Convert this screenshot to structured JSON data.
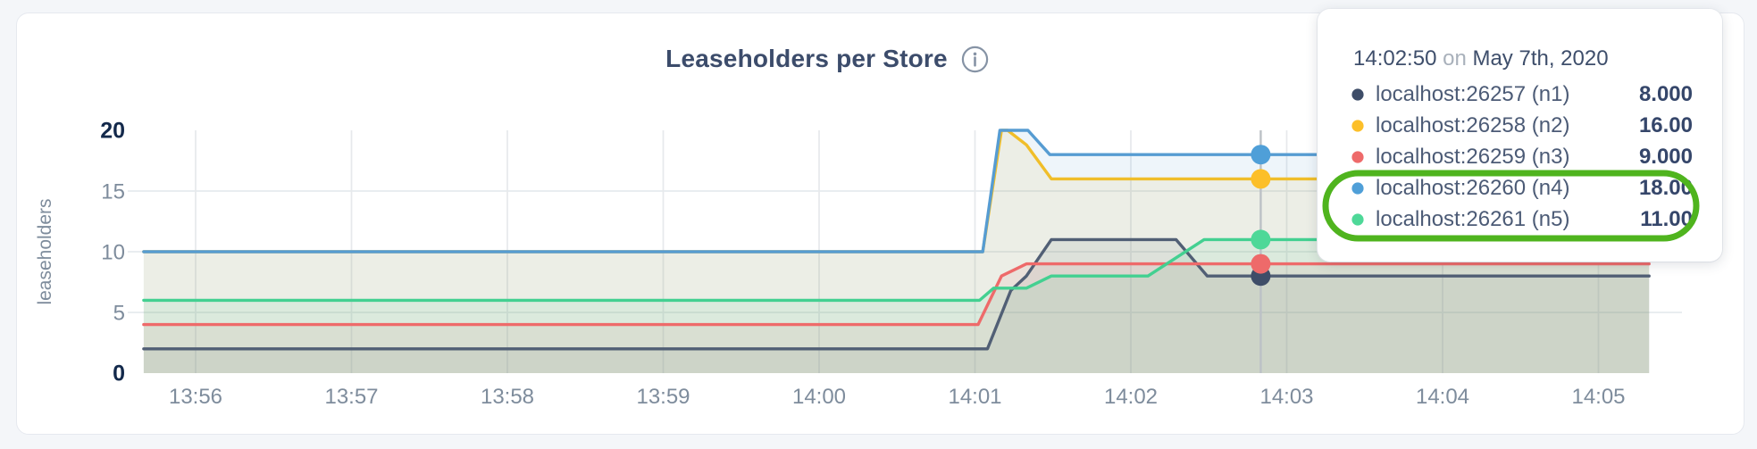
{
  "header": {
    "title": "Leaseholders per Store"
  },
  "tooltip": {
    "time": "14:02:50",
    "conjunction": "on",
    "date": "May 7th, 2020",
    "highlight_color": "#4fb41e",
    "rows": [
      {
        "label": "localhost:26257 (n1)",
        "value": "8.000",
        "dot_color": "#3e4d68",
        "highlighted": false
      },
      {
        "label": "localhost:26258 (n2)",
        "value": "16.00",
        "dot_color": "#fcbf29",
        "highlighted": false
      },
      {
        "label": "localhost:26259 (n3)",
        "value": "9.000",
        "dot_color": "#ee6a6a",
        "highlighted": false
      },
      {
        "label": "localhost:26260 (n4)",
        "value": "18.00",
        "dot_color": "#4f9fd8",
        "highlighted": true
      },
      {
        "label": "localhost:26261 (n5)",
        "value": "11.00",
        "dot_color": "#4ed898",
        "highlighted": true
      }
    ]
  },
  "chart_data": {
    "type": "area",
    "title": "Leaseholders per Store",
    "ylabel": "leaseholders",
    "ylim": [
      0,
      20
    ],
    "y_ticks": [
      0,
      5,
      10,
      15,
      20
    ],
    "y_gridlines": [
      5,
      10,
      15
    ],
    "grid": true,
    "legend_position": "tooltip-overlay",
    "x_ticks": {
      "labels": [
        "13:56",
        "13:57",
        "13:58",
        "13:59",
        "14:00",
        "14:01",
        "14:02",
        "14:03",
        "14:04",
        "14:05"
      ],
      "minutes": [
        56,
        57,
        58,
        59,
        60,
        61,
        62,
        63,
        64,
        65
      ]
    },
    "x_range_minutes": [
      55.667,
      65.325
    ],
    "hover": {
      "time_label": "14:02:50",
      "date_label": "May 7th, 2020",
      "x_minute": 62.8333
    },
    "series": [
      {
        "name": "localhost:26257 (n1)",
        "node": "n1",
        "color": "#515f75",
        "dot_color": "#3e4d68",
        "hover_value": 8,
        "points": [
          [
            55.667,
            2
          ],
          [
            61.08,
            2
          ],
          [
            61.23,
            6.8
          ],
          [
            61.33,
            8
          ],
          [
            61.49,
            11
          ],
          [
            62.29,
            11
          ],
          [
            62.49,
            8
          ],
          [
            65.325,
            8
          ]
        ]
      },
      {
        "name": "localhost:26258 (n2)",
        "node": "n2",
        "color": "#f0be2a",
        "dot_color": "#fcbf29",
        "hover_value": 16,
        "points": [
          [
            55.667,
            10
          ],
          [
            61.05,
            10
          ],
          [
            61.17,
            20
          ],
          [
            61.21,
            20
          ],
          [
            61.33,
            18.8
          ],
          [
            61.49,
            16
          ],
          [
            65.325,
            16
          ]
        ]
      },
      {
        "name": "localhost:26259 (n3)",
        "node": "n3",
        "color": "#ee6a6a",
        "dot_color": "#ee6a6a",
        "hover_value": 9,
        "points": [
          [
            55.667,
            4
          ],
          [
            61.02,
            4
          ],
          [
            61.17,
            8
          ],
          [
            61.33,
            9
          ],
          [
            65.325,
            9
          ]
        ]
      },
      {
        "name": "localhost:26260 (n4)",
        "node": "n4",
        "color": "#569cd2",
        "dot_color": "#4f9fd8",
        "hover_value": 18,
        "points": [
          [
            55.667,
            10
          ],
          [
            61.05,
            10
          ],
          [
            61.16,
            20
          ],
          [
            61.34,
            20
          ],
          [
            61.48,
            18
          ],
          [
            65.325,
            18
          ]
        ]
      },
      {
        "name": "localhost:26261 (n5)",
        "node": "n5",
        "color": "#43d091",
        "dot_color": "#4ed898",
        "hover_value": 11,
        "points": [
          [
            55.667,
            6
          ],
          [
            61.03,
            6
          ],
          [
            61.12,
            7
          ],
          [
            61.33,
            7
          ],
          [
            61.49,
            8
          ],
          [
            62.11,
            8
          ],
          [
            62.47,
            11
          ],
          [
            65.325,
            11
          ]
        ]
      }
    ]
  }
}
